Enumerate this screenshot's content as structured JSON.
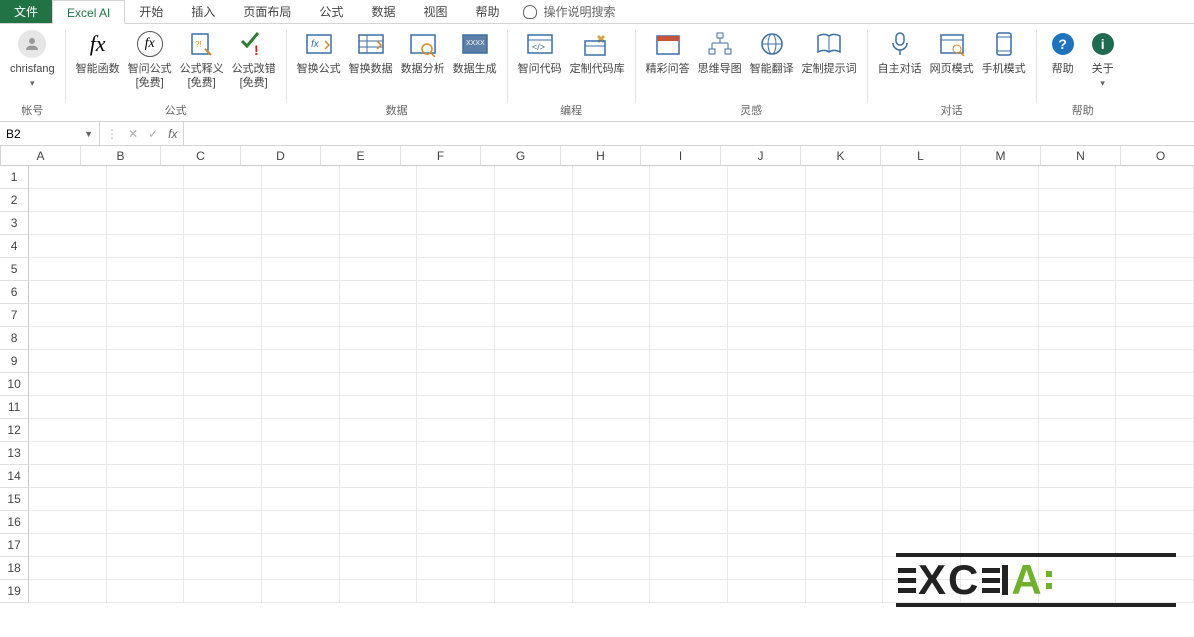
{
  "tabs": {
    "file": "文件",
    "excel_ai": "Excel AI",
    "home": "开始",
    "insert": "插入",
    "page_layout": "页面布局",
    "formulas": "公式",
    "data": "数据",
    "view": "视图",
    "help": "帮助",
    "tell_me": "操作说明搜索"
  },
  "ribbon": {
    "account": {
      "user": "chrisfang",
      "label": "帐号"
    },
    "formula": {
      "smart_fn": "智能函数",
      "ask_formula": "智问公式\n[免费]",
      "explain_formula": "公式释义\n[免费]",
      "fix_formula": "公式改错\n[免费]",
      "group": "公式"
    },
    "data": {
      "swap_formula": "智换公式",
      "swap_data": "智换数据",
      "analyze": "数据分析",
      "generate": "数据生成",
      "group": "数据"
    },
    "code": {
      "ask_code": "智问代码",
      "custom_lib": "定制代码库",
      "group": "编程"
    },
    "inspire": {
      "qa": "精彩问答",
      "mindmap": "思维导图",
      "translate": "智能翻译",
      "prompts": "定制提示词",
      "group": "灵感"
    },
    "dialog": {
      "auto": "自主对话",
      "web": "网页模式",
      "mobile": "手机模式",
      "group": "对话"
    },
    "help": {
      "help": "帮助",
      "about": "关于",
      "group": "帮助"
    }
  },
  "formula_bar": {
    "cell_ref": "B2",
    "fx": "fx"
  },
  "grid": {
    "cols": [
      "A",
      "B",
      "C",
      "D",
      "E",
      "F",
      "G",
      "H",
      "I",
      "J",
      "K",
      "L",
      "M",
      "N",
      "O"
    ],
    "rows": 19
  },
  "watermark": {
    "text": "EXCELAi"
  }
}
